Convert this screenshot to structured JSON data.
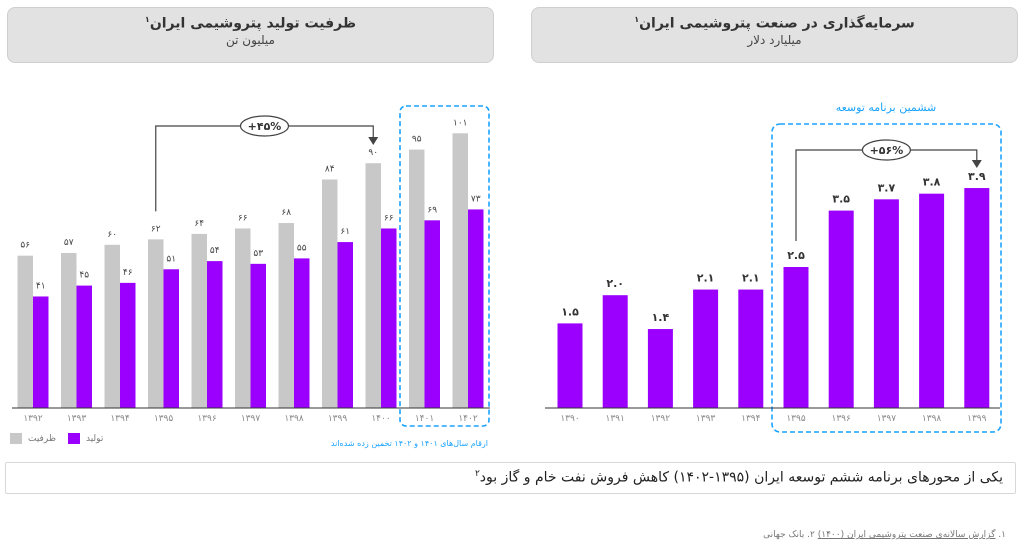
{
  "left_panel": {
    "title": "ظرفیت تولید پتروشیمی ایران",
    "title_sup": "۱",
    "subtitle": "میلیون تن"
  },
  "right_panel": {
    "title": "سرمایه‌گذاری در صنعت پتروشیمی ایران",
    "title_sup": "۱",
    "subtitle": "میلیارد دلار",
    "plan_label": "ششمین برنامه توسعه"
  },
  "legend": {
    "capacity": "ظرفیت",
    "production": "تولید"
  },
  "estimate_note": "ارقام سال‌های ۱۴۰۱ و ۱۴۰۲ تخمین زده شده‌اند",
  "statement": {
    "text": "یکی از محورهای برنامه ششم توسعه ایران (۱۳۹۵-۱۴۰۲) کاهش فروش نفت خام و گاز بود",
    "sup": "۲"
  },
  "footnote": {
    "n1": "۱. ",
    "source1": "گزارش سالانه‌ی صنعت پتروشیمی ایران (۱۴۰۰)",
    "rest": " ۲. بانک جهانی"
  },
  "colors": {
    "capacity": "#c8c8c8",
    "production": "#9b00ff",
    "highlight": "#1aa3ff",
    "header_bg": "#e2e2e2"
  },
  "chart_data": [
    {
      "type": "bar",
      "title": "ظرفیت تولید پتروشیمی ایران",
      "ylabel": "میلیون تن",
      "categories": [
        "۱۳۹۲",
        "۱۳۹۳",
        "۱۳۹۴",
        "۱۳۹۵",
        "۱۳۹۶",
        "۱۳۹۷",
        "۱۳۹۸",
        "۱۳۹۹",
        "۱۴۰۰",
        "۱۴۰۱",
        "۱۴۰۲"
      ],
      "series": [
        {
          "name": "ظرفیت",
          "values": [
            56,
            57,
            60,
            62,
            64,
            66,
            68,
            84,
            90,
            95,
            101
          ],
          "labels": [
            "۵۶",
            "۵۷",
            "۶۰",
            "۶۲",
            "۶۴",
            "۶۶",
            "۶۸",
            "۸۴",
            "۹۰",
            "۹۵",
            "۱۰۱"
          ]
        },
        {
          "name": "تولید",
          "values": [
            41,
            45,
            46,
            51,
            54,
            53,
            55,
            61,
            66,
            69,
            73
          ],
          "labels": [
            "۴۱",
            "۴۵",
            "۴۶",
            "۵۱",
            "۵۴",
            "۵۳",
            "۵۵",
            "۶۱",
            "۶۶",
            "۶۹",
            "۷۳"
          ]
        }
      ],
      "annotation": {
        "text": "+۴۵%",
        "from": "۱۳۹۵",
        "to": "۱۴۰۰"
      },
      "highlight_categories": [
        "۱۴۰۱",
        "۱۴۰۲"
      ],
      "legend": "bottom-left",
      "grid": false
    },
    {
      "type": "bar",
      "title": "سرمایه‌گذاری در صنعت پتروشیمی ایران",
      "ylabel": "میلیارد دلار",
      "categories": [
        "۱۳۹۰",
        "۱۳۹۱",
        "۱۳۹۲",
        "۱۳۹۳",
        "۱۳۹۴",
        "۱۳۹۵",
        "۱۳۹۶",
        "۱۳۹۷",
        "۱۳۹۸",
        "۱۳۹۹"
      ],
      "values": [
        1.5,
        2.0,
        1.4,
        2.1,
        2.1,
        2.5,
        3.5,
        3.7,
        3.8,
        3.9
      ],
      "labels": [
        "۱.۵",
        "۲.۰",
        "۱.۴",
        "۲.۱",
        "۲.۱",
        "۲.۵",
        "۳.۵",
        "۳.۷",
        "۳.۸",
        "۳.۹"
      ],
      "annotation": {
        "text": "+۵۶%",
        "from": "۱۳۹۵",
        "to": "۱۳۹۹"
      },
      "highlight_label": "ششمین برنامه توسعه",
      "highlight_categories": [
        "۱۳۹۵",
        "۱۳۹۶",
        "۱۳۹۷",
        "۱۳۹۸",
        "۱۳۹۹"
      ],
      "grid": false
    }
  ]
}
